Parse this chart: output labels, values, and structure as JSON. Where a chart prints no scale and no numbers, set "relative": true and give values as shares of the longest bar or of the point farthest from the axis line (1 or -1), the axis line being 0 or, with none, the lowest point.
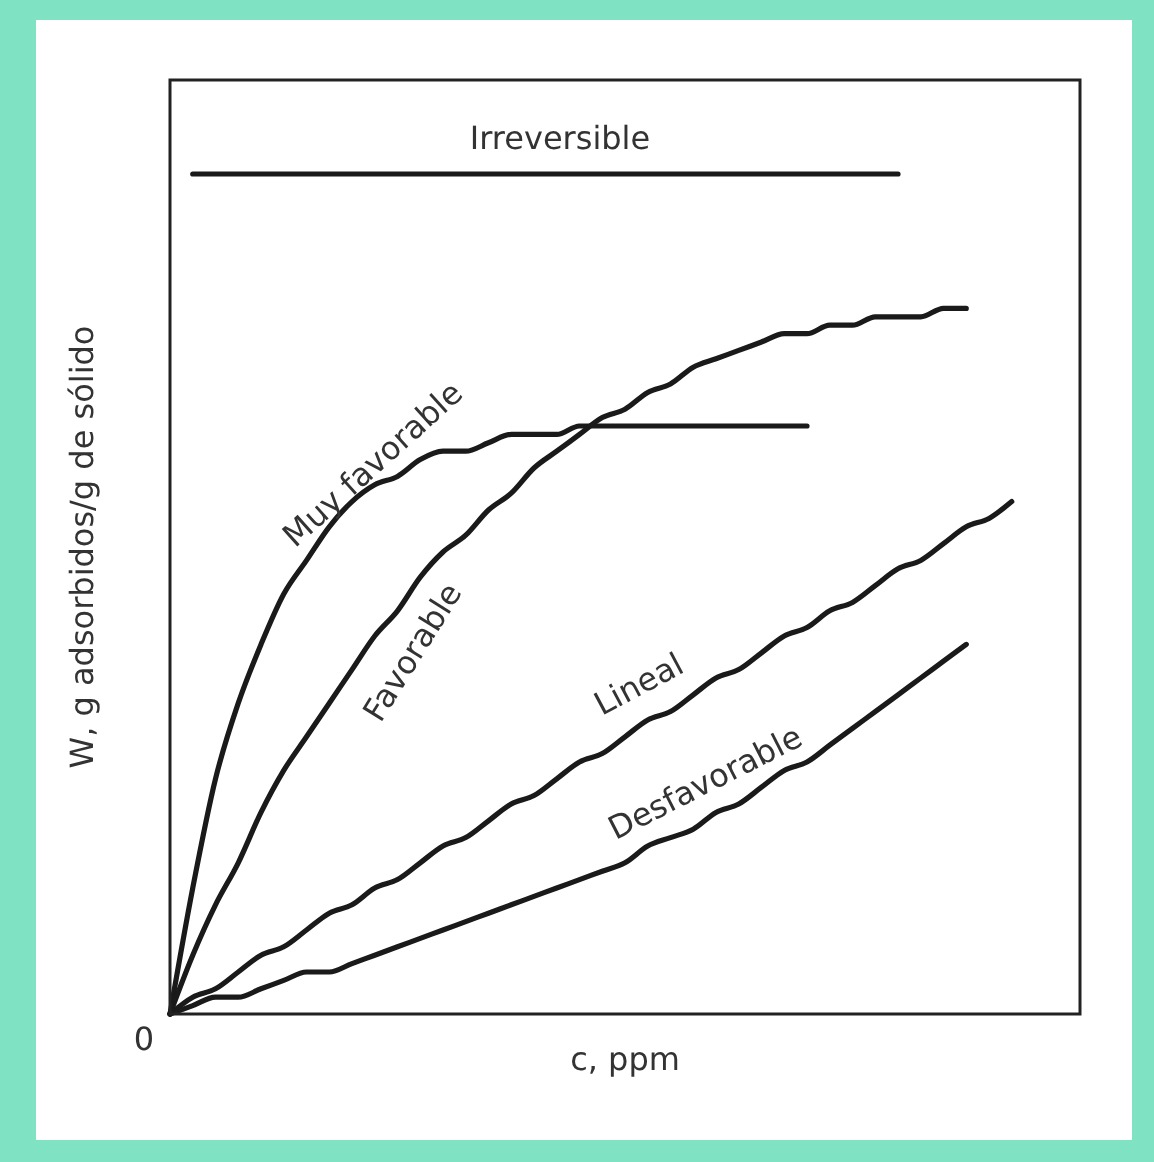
{
  "chart_data": {
    "type": "line",
    "xlabel": "c, ppm",
    "ylabel": "W, g adsorbidos/g de sólido",
    "relative": true,
    "annotations": [
      "0"
    ],
    "categories": [
      null,
      null,
      null,
      null,
      null,
      null,
      null,
      null,
      null,
      null,
      null,
      null,
      null,
      null,
      null,
      null,
      null,
      null,
      null,
      null,
      null,
      null,
      null,
      null,
      null,
      null,
      null,
      null,
      null,
      null,
      null,
      null,
      null,
      null,
      null,
      null,
      null,
      null,
      null,
      null,
      null
    ],
    "series": [
      {
        "name": "Irreversible",
        "color": "#1a1a1a",
        "values": [
          null,
          1,
          1,
          1,
          1,
          1,
          1,
          1,
          1,
          1,
          1,
          1,
          1,
          1,
          1,
          1,
          1,
          1,
          1,
          1,
          1,
          1,
          1,
          1,
          1,
          1,
          1,
          1,
          1,
          1,
          1,
          1,
          1,
          null,
          null,
          null,
          null,
          null,
          null,
          null,
          null
        ]
      },
      {
        "name": "Muy favorable",
        "color": "#1a1a1a",
        "values": [
          0,
          0.15,
          0.28,
          0.37,
          0.44,
          0.5,
          0.54,
          0.58,
          0.61,
          0.63,
          0.64,
          0.66,
          0.67,
          0.67,
          0.68,
          0.69,
          0.69,
          0.69,
          0.7,
          0.7,
          0.7,
          0.7,
          0.7,
          0.7,
          0.7,
          0.7,
          0.7,
          0.7,
          0.7,
          null,
          null,
          null,
          null,
          null,
          null,
          null,
          null,
          null,
          null,
          null,
          null
        ]
      },
      {
        "name": "Favorable",
        "color": "#1a1a1a",
        "values": [
          0,
          0.07,
          0.13,
          0.18,
          0.24,
          0.29,
          0.33,
          0.37,
          0.41,
          0.45,
          0.48,
          0.52,
          0.55,
          0.57,
          0.6,
          0.62,
          0.65,
          0.67,
          0.69,
          0.71,
          0.72,
          0.74,
          0.75,
          0.77,
          0.78,
          0.79,
          0.8,
          0.81,
          0.81,
          0.82,
          0.82,
          0.83,
          0.83,
          0.83,
          0.84,
          0.84,
          null,
          null,
          null,
          null,
          null
        ]
      },
      {
        "name": "Lineal",
        "color": "#1a1a1a",
        "values": [
          0,
          0.02,
          0.03,
          0.05,
          0.07,
          0.08,
          0.1,
          0.12,
          0.13,
          0.15,
          0.16,
          0.18,
          0.2,
          0.21,
          0.23,
          0.25,
          0.26,
          0.28,
          0.3,
          0.31,
          0.33,
          0.35,
          0.36,
          0.38,
          0.4,
          0.41,
          0.43,
          0.45,
          0.46,
          0.48,
          0.49,
          0.51,
          0.53,
          0.54,
          0.56,
          0.58,
          0.59,
          0.61,
          null,
          null,
          null
        ]
      },
      {
        "name": "Desfavorable",
        "color": "#1a1a1a",
        "values": [
          0,
          0.01,
          0.02,
          0.02,
          0.03,
          0.04,
          0.05,
          0.05,
          0.06,
          0.07,
          0.08,
          0.09,
          0.1,
          0.11,
          0.12,
          0.13,
          0.14,
          0.15,
          0.16,
          0.17,
          0.18,
          0.2,
          0.21,
          0.22,
          0.24,
          0.25,
          0.27,
          0.29,
          0.3,
          0.32,
          0.34,
          0.36,
          0.38,
          0.4,
          0.42,
          0.44,
          null,
          null,
          null,
          null,
          null
        ]
      }
    ]
  }
}
